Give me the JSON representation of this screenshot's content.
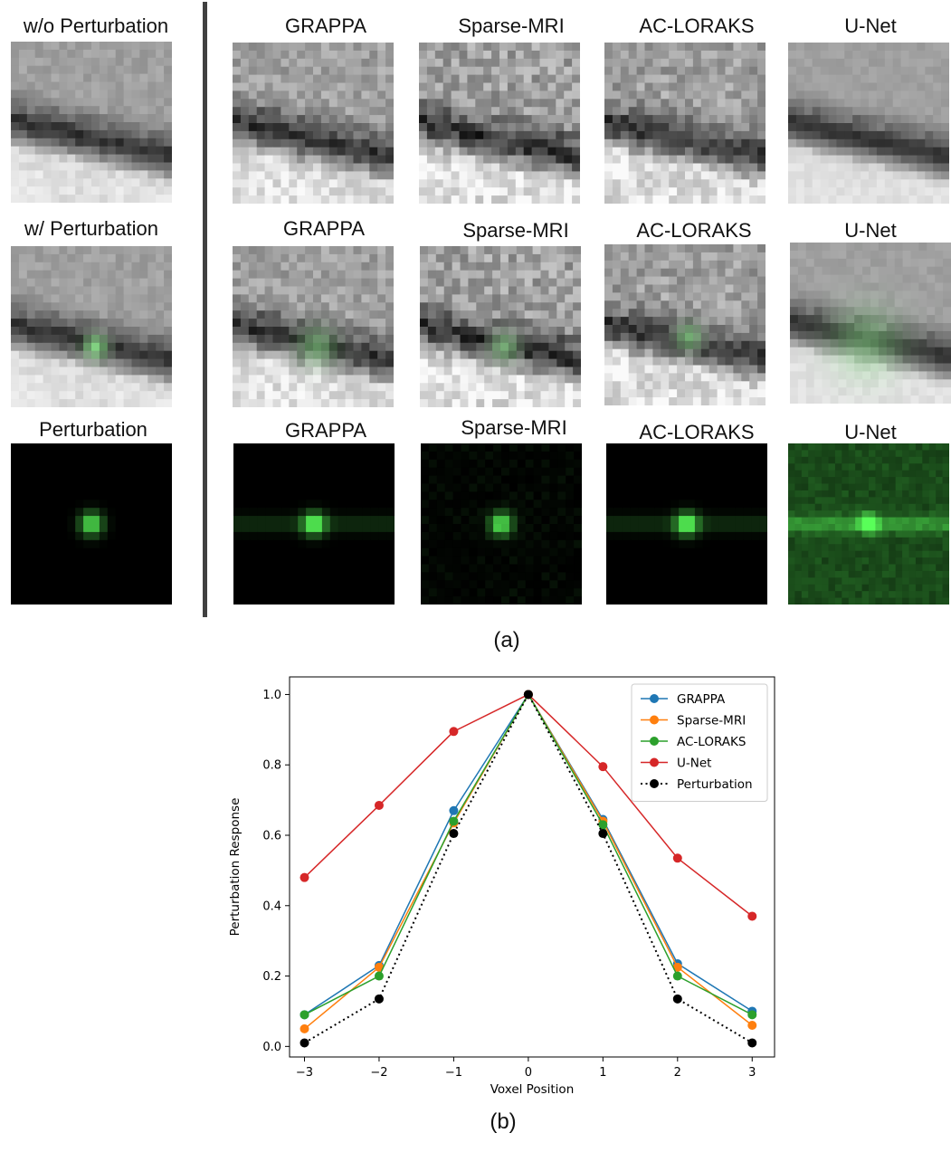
{
  "figure_a": {
    "caption": "(a)",
    "rows": [
      {
        "left_label": "w/o Perturbation",
        "method_labels": [
          "GRAPPA",
          "Sparse-MRI",
          "AC-LORAKS",
          "U-Net"
        ],
        "kind": "base"
      },
      {
        "left_label": "w/ Perturbation",
        "method_labels": [
          "GRAPPA",
          "Sparse-MRI",
          "AC-LORAKS",
          "U-Net"
        ],
        "kind": "perturbed"
      },
      {
        "left_label": "Perturbation",
        "method_labels": [
          "GRAPPA",
          "Sparse-MRI",
          "AC-LORAKS",
          "U-Net"
        ],
        "kind": "perturbation"
      }
    ]
  },
  "figure_b": {
    "caption": "(b)"
  },
  "chart_data": {
    "type": "line",
    "xlabel": "Voxel Position",
    "ylabel": "Perturbation Response",
    "x": [
      -3,
      -2,
      -1,
      0,
      1,
      2,
      3
    ],
    "xlim": [
      -3.2,
      3.3
    ],
    "ylim": [
      -0.03,
      1.05
    ],
    "xticks": [
      "−3",
      "−2",
      "−1",
      "0",
      "1",
      "2",
      "3"
    ],
    "yticks": [
      "0.0",
      "0.2",
      "0.4",
      "0.6",
      "0.8",
      "1.0"
    ],
    "legend_position": "top-right",
    "grid": false,
    "series": [
      {
        "name": "GRAPPA",
        "color": "#1f77b4",
        "style": "solid",
        "values": [
          0.09,
          0.23,
          0.67,
          1.0,
          0.645,
          0.235,
          0.1
        ]
      },
      {
        "name": "Sparse-MRI",
        "color": "#ff7f0e",
        "style": "solid",
        "values": [
          0.05,
          0.225,
          0.635,
          1.0,
          0.64,
          0.225,
          0.06
        ]
      },
      {
        "name": "AC-LORAKS",
        "color": "#2ca02c",
        "style": "solid",
        "values": [
          0.09,
          0.2,
          0.64,
          1.0,
          0.63,
          0.2,
          0.09
        ]
      },
      {
        "name": "U-Net",
        "color": "#d62728",
        "style": "solid",
        "values": [
          0.48,
          0.685,
          0.895,
          1.0,
          0.795,
          0.535,
          0.37
        ]
      },
      {
        "name": "Perturbation",
        "color": "#000000",
        "style": "dotted",
        "values": [
          0.01,
          0.135,
          0.605,
          1.0,
          0.605,
          0.135,
          0.01
        ]
      }
    ]
  }
}
